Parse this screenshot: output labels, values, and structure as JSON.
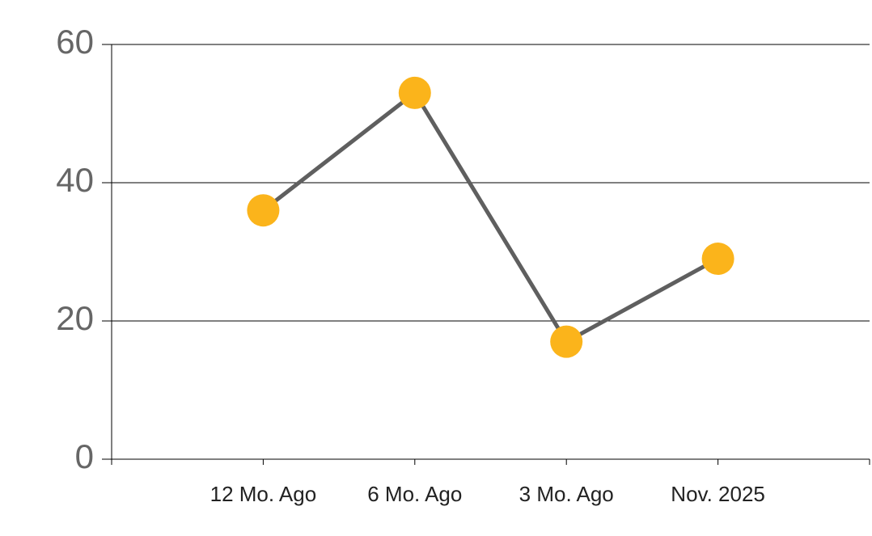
{
  "chart_data": {
    "type": "line",
    "categories": [
      "12 Mo. Ago",
      "6 Mo. Ago",
      "3 Mo. Ago",
      "Nov. 2025"
    ],
    "series": [
      {
        "values": [
          36,
          53,
          17,
          29
        ],
        "color": "#5f5f5f",
        "marker_color": "#fbb41b"
      }
    ],
    "ylim": [
      0,
      60
    ],
    "yticks": [
      0,
      20,
      40,
      60
    ],
    "grid": true
  }
}
